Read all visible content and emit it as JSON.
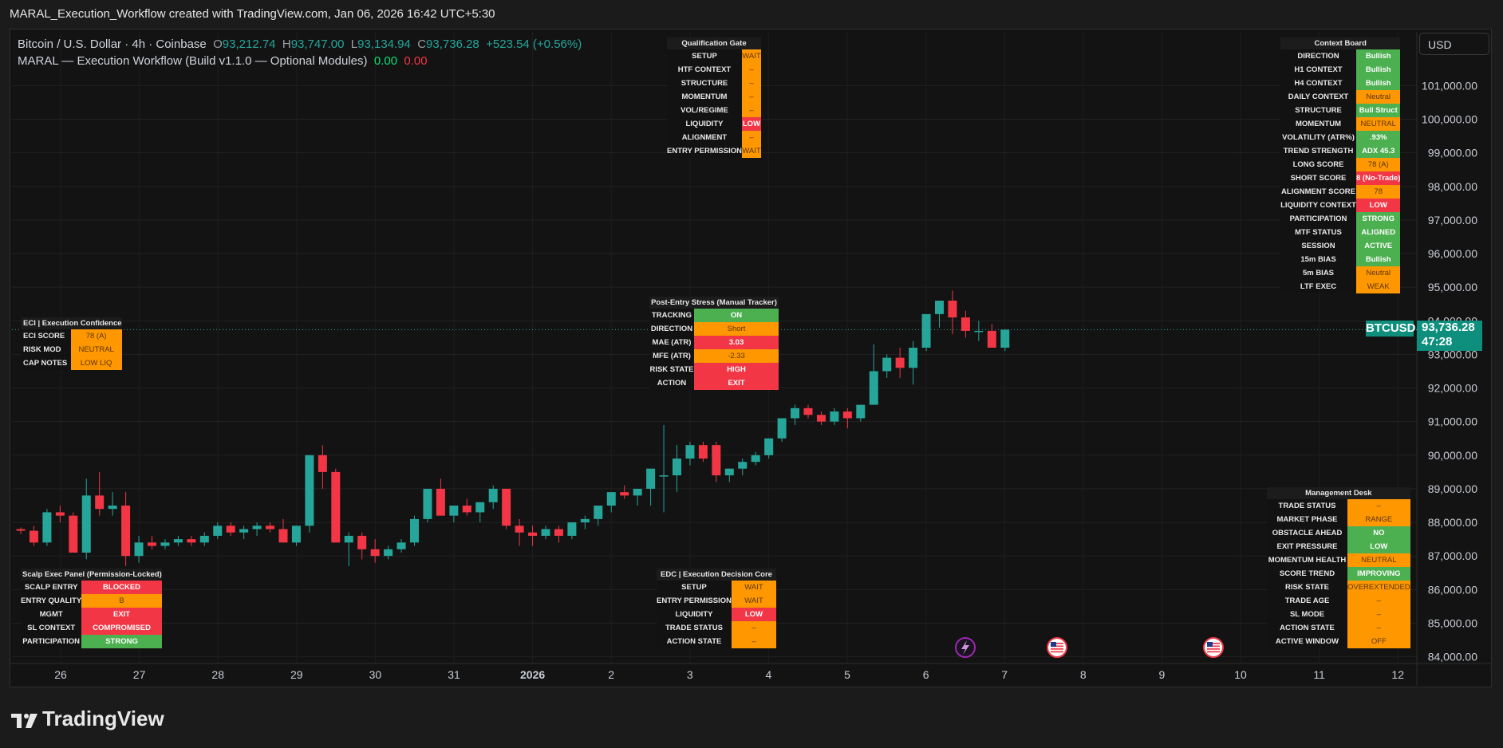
{
  "window_title": "MARAL_Execution_Workflow created with TradingView.com, Jan 06, 2026 16:42 UTC+5:30",
  "legend": {
    "symbol": "Bitcoin / U.S. Dollar · 4h · Coinbase",
    "o_label": "O",
    "o_value": "93,212.74",
    "h_label": "H",
    "h_value": "93,747.00",
    "l_label": "L",
    "l_value": "93,134.94",
    "c_label": "C",
    "c_value": "93,736.28",
    "change": "+523.54 (+0.56%)",
    "indicator": "MARAL — Execution Workflow (Build v1.1.0 — Optional Modules)",
    "ind_val1": "0.00",
    "ind_val2": "0.00"
  },
  "currency_button": "USD",
  "symbol_tag": "BTCUSD",
  "last_price": "93,736.28",
  "countdown": "47:28",
  "footer_brand": "TradingView",
  "colors": {
    "up": "#26a69a",
    "down": "#f23645",
    "panel_green": "#4caf50",
    "panel_orange": "#ff9800",
    "panel_red": "#f23645"
  },
  "chart_data": {
    "type": "candlestick",
    "symbol": "BTCUSD",
    "timeframe": "4h",
    "ylim": [
      83800,
      102600
    ],
    "y_ticks": [
      84000,
      85000,
      86000,
      87000,
      88000,
      89000,
      90000,
      91000,
      92000,
      93000,
      94000,
      95000,
      96000,
      97000,
      98000,
      99000,
      100000,
      101000
    ],
    "y_tick_labels": [
      "84,000.00",
      "85,000.00",
      "86,000.00",
      "87,000.00",
      "88,000.00",
      "89,000.00",
      "90,000.00",
      "91,000.00",
      "92,000.00",
      "93,000.00",
      "94,000.00",
      "95,000.00",
      "96,000.00",
      "97,000.00",
      "98,000.00",
      "99,000.00",
      "100,000.00",
      "101,000.00"
    ],
    "x_ticks": [
      "26",
      "27",
      "28",
      "29",
      "30",
      "31",
      "2026",
      "2",
      "3",
      "4",
      "5",
      "6",
      "7",
      "8",
      "9",
      "10",
      "11",
      "12"
    ],
    "last_price": 93736.28,
    "candles": [
      [
        87800,
        87850,
        87650,
        87750
      ],
      [
        87750,
        87900,
        87300,
        87400
      ],
      [
        87400,
        88400,
        87300,
        88300
      ],
      [
        88300,
        88500,
        88000,
        88200
      ],
      [
        88200,
        88300,
        87200,
        87100
      ],
      [
        87100,
        89300,
        86900,
        88800
      ],
      [
        88800,
        89500,
        88200,
        88400
      ],
      [
        88400,
        88900,
        88200,
        88500
      ],
      [
        88500,
        88900,
        86700,
        87000
      ],
      [
        87000,
        87600,
        86800,
        87400
      ],
      [
        87400,
        87600,
        87200,
        87300
      ],
      [
        87300,
        87500,
        87200,
        87400
      ],
      [
        87400,
        87600,
        87300,
        87500
      ],
      [
        87500,
        87600,
        87300,
        87400
      ],
      [
        87400,
        87700,
        87300,
        87600
      ],
      [
        87600,
        88000,
        87500,
        87900
      ],
      [
        87900,
        88000,
        87600,
        87700
      ],
      [
        87700,
        87900,
        87500,
        87800
      ],
      [
        87800,
        88000,
        87600,
        87900
      ],
      [
        87900,
        88000,
        87700,
        87800
      ],
      [
        87800,
        88100,
        87500,
        87400
      ],
      [
        87400,
        87900,
        87300,
        87900
      ],
      [
        87900,
        90000,
        87700,
        90000
      ],
      [
        90000,
        90300,
        89000,
        89500
      ],
      [
        89500,
        89600,
        87400,
        87400
      ],
      [
        87400,
        87700,
        86700,
        87600
      ],
      [
        87600,
        87700,
        86900,
        87200
      ],
      [
        87200,
        87500,
        86800,
        87000
      ],
      [
        87000,
        87300,
        86900,
        87200
      ],
      [
        87200,
        87500,
        87100,
        87400
      ],
      [
        87400,
        88200,
        87300,
        88100
      ],
      [
        88100,
        89000,
        88000,
        89000
      ],
      [
        89000,
        89300,
        88200,
        88200
      ],
      [
        88200,
        88500,
        88000,
        88500
      ],
      [
        88500,
        88700,
        88200,
        88300
      ],
      [
        88300,
        88600,
        88000,
        88600
      ],
      [
        88600,
        89100,
        88400,
        89000
      ],
      [
        89000,
        89000,
        87800,
        87900
      ],
      [
        87900,
        88100,
        87300,
        87700
      ],
      [
        87700,
        87900,
        87300,
        87600
      ],
      [
        87600,
        87900,
        87500,
        87800
      ],
      [
        87800,
        87900,
        87400,
        87600
      ],
      [
        87600,
        88000,
        87500,
        88000
      ],
      [
        88000,
        88200,
        87800,
        88100
      ],
      [
        88100,
        88500,
        87900,
        88500
      ],
      [
        88500,
        88900,
        88300,
        88900
      ],
      [
        88900,
        89100,
        88700,
        88800
      ],
      [
        88800,
        89000,
        88500,
        89000
      ],
      [
        89000,
        89600,
        88500,
        89600
      ],
      [
        89400,
        90900,
        88300,
        89400
      ],
      [
        89400,
        90300,
        88900,
        89900
      ],
      [
        89900,
        90400,
        89700,
        90300
      ],
      [
        90300,
        90400,
        89800,
        89900
      ],
      [
        90300,
        90400,
        89200,
        89400
      ],
      [
        89400,
        89600,
        89200,
        89600
      ],
      [
        89600,
        89900,
        89400,
        89800
      ],
      [
        89800,
        90100,
        89700,
        90000
      ],
      [
        90000,
        90500,
        89900,
        90500
      ],
      [
        90500,
        91100,
        90400,
        91100
      ],
      [
        91100,
        91500,
        90900,
        91400
      ],
      [
        91400,
        91500,
        91100,
        91200
      ],
      [
        91200,
        91300,
        90900,
        91000
      ],
      [
        91000,
        91400,
        90900,
        91300
      ],
      [
        91300,
        91400,
        90800,
        91100
      ],
      [
        91100,
        91500,
        91000,
        91500
      ],
      [
        91500,
        93300,
        91500,
        92500
      ],
      [
        92500,
        93000,
        92300,
        92900
      ],
      [
        92900,
        93200,
        92300,
        92600
      ],
      [
        92600,
        93400,
        92100,
        93200
      ],
      [
        93200,
        94200,
        93100,
        94200
      ],
      [
        94200,
        94600,
        93800,
        94600
      ],
      [
        94600,
        94900,
        93600,
        94100
      ],
      [
        94100,
        94300,
        93500,
        93700
      ],
      [
        93700,
        94000,
        93400,
        93700
      ],
      [
        93700,
        93900,
        93200,
        93200
      ],
      [
        93200,
        93750,
        93100,
        93736
      ]
    ]
  },
  "panels": {
    "qual_gate": {
      "title": "Qualification Gate",
      "rows": [
        {
          "label": "SETUP",
          "value": "WAIT",
          "color": "orange"
        },
        {
          "label": "HTF CONTEXT",
          "value": "–",
          "color": "orange"
        },
        {
          "label": "STRUCTURE",
          "value": "–",
          "color": "orange"
        },
        {
          "label": "MOMENTUM",
          "value": "–",
          "color": "orange"
        },
        {
          "label": "VOL/REGIME",
          "value": "–",
          "color": "orange"
        },
        {
          "label": "LIQUIDITY",
          "value": "LOW",
          "color": "red"
        },
        {
          "label": "ALIGNMENT",
          "value": "–",
          "color": "orange"
        },
        {
          "label": "ENTRY PERMISSION",
          "value": "WAIT",
          "color": "orange"
        }
      ]
    },
    "context_board": {
      "title": "Context Board",
      "rows": [
        {
          "label": "DIRECTION",
          "value": "Bullish",
          "color": "green"
        },
        {
          "label": "H1 CONTEXT",
          "value": "Bullish",
          "color": "green"
        },
        {
          "label": "H4 CONTEXT",
          "value": "Bullish",
          "color": "green"
        },
        {
          "label": "DAILY CONTEXT",
          "value": "Neutral",
          "color": "orange"
        },
        {
          "label": "STRUCTURE",
          "value": "Bull Struct",
          "color": "green"
        },
        {
          "label": "MOMENTUM",
          "value": "NEUTRAL",
          "color": "orange"
        },
        {
          "label": "VOLATILITY (ATR%)",
          "value": ".93%",
          "color": "green"
        },
        {
          "label": "TREND STRENGTH",
          "value": "ADX 45.3",
          "color": "green"
        },
        {
          "label": "LONG SCORE",
          "value": "78 (A)",
          "color": "orange"
        },
        {
          "label": "SHORT SCORE",
          "value": "8 (No-Trade)",
          "color": "red"
        },
        {
          "label": "ALIGNMENT SCORE",
          "value": "78",
          "color": "orange"
        },
        {
          "label": "LIQUIDITY CONTEXT",
          "value": "LOW",
          "color": "red"
        },
        {
          "label": "PARTICIPATION",
          "value": "STRONG",
          "color": "green"
        },
        {
          "label": "MTF STATUS",
          "value": "ALIGNED",
          "color": "green"
        },
        {
          "label": "SESSION",
          "value": "ACTIVE",
          "color": "green"
        },
        {
          "label": "15m BIAS",
          "value": "Bullish",
          "color": "green"
        },
        {
          "label": "5m BIAS",
          "value": "Neutral",
          "color": "orange"
        },
        {
          "label": "LTF EXEC",
          "value": "WEAK",
          "color": "orange"
        }
      ]
    },
    "eci": {
      "title": "ECI | Execution Confidence",
      "rows": [
        {
          "label": "ECI SCORE",
          "value": "78 (A)",
          "color": "orange"
        },
        {
          "label": "RISK MOD",
          "value": "NEUTRAL",
          "color": "orange"
        },
        {
          "label": "CAP NOTES",
          "value": "LOW LIQ",
          "color": "orange"
        }
      ]
    },
    "post_entry": {
      "title": "Post-Entry Stress (Manual Tracker)",
      "rows": [
        {
          "label": "TRACKING",
          "value": "ON",
          "color": "green"
        },
        {
          "label": "DIRECTION",
          "value": "Short",
          "color": "orange"
        },
        {
          "label": "MAE (ATR)",
          "value": "3.03",
          "color": "red"
        },
        {
          "label": "MFE (ATR)",
          "value": "-2.33",
          "color": "orange"
        },
        {
          "label": "RISK STATE",
          "value": "HIGH",
          "color": "red"
        },
        {
          "label": "ACTION",
          "value": "EXIT",
          "color": "red"
        }
      ]
    },
    "scalp": {
      "title": "Scalp Exec Panel (Permission-Locked)",
      "rows": [
        {
          "label": "SCALP ENTRY",
          "value": "BLOCKED",
          "color": "red"
        },
        {
          "label": "ENTRY QUALITY",
          "value": "B",
          "color": "orange"
        },
        {
          "label": "MGMT",
          "value": "EXIT",
          "color": "red"
        },
        {
          "label": "SL CONTEXT",
          "value": "COMPROMISED",
          "color": "red"
        },
        {
          "label": "PARTICIPATION",
          "value": "STRONG",
          "color": "green"
        }
      ]
    },
    "edc": {
      "title": "EDC | Execution Decision Core",
      "rows": [
        {
          "label": "SETUP",
          "value": "WAIT",
          "color": "orange"
        },
        {
          "label": "ENTRY PERMISSION",
          "value": "WAIT",
          "color": "orange"
        },
        {
          "label": "LIQUIDITY",
          "value": "LOW",
          "color": "red"
        },
        {
          "label": "TRADE STATUS",
          "value": "–",
          "color": "orange"
        },
        {
          "label": "ACTION STATE",
          "value": "–",
          "color": "orange"
        }
      ]
    },
    "mgmt": {
      "title": "Management Desk",
      "rows": [
        {
          "label": "TRADE STATUS",
          "value": "–",
          "color": "orange"
        },
        {
          "label": "MARKET PHASE",
          "value": "RANGE",
          "color": "orange"
        },
        {
          "label": "OBSTACLE AHEAD",
          "value": "NO",
          "color": "green"
        },
        {
          "label": "EXIT PRESSURE",
          "value": "LOW",
          "color": "green"
        },
        {
          "label": "MOMENTUM HEALTH",
          "value": "NEUTRAL",
          "color": "orange"
        },
        {
          "label": "SCORE TREND",
          "value": "IMPROVING",
          "color": "green"
        },
        {
          "label": "RISK STATE",
          "value": "OVEREXTENDED",
          "color": "orange"
        },
        {
          "label": "TRADE AGE",
          "value": "–",
          "color": "orange"
        },
        {
          "label": "SL MODE",
          "value": "–",
          "color": "orange"
        },
        {
          "label": "ACTION STATE",
          "value": "–",
          "color": "orange"
        },
        {
          "label": "ACTIVE WINDOW",
          "value": "OFF",
          "color": "orange"
        }
      ]
    }
  }
}
